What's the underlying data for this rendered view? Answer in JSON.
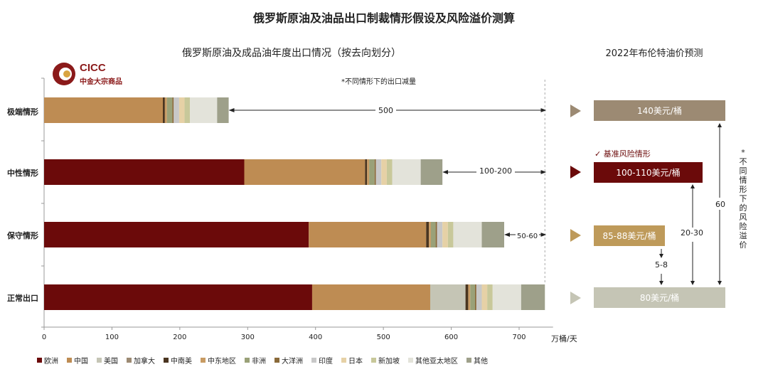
{
  "title": "俄罗斯原油及油品出口制裁情形假设及风险溢价测算",
  "left_title": "俄罗斯原油及成品油年度出口情况（按去向划分）",
  "right_title": "2022年布伦特油价预测",
  "note": "*不同情形下的出口减量",
  "logo": {
    "name": "CICC",
    "sub": "中金大宗商品"
  },
  "x_unit": "万桶/天",
  "scenarios": [
    {
      "label": "极端情形",
      "reduction": "500"
    },
    {
      "label": "中性情形",
      "reduction": "100-200"
    },
    {
      "label": "保守情形",
      "reduction": "50-60"
    },
    {
      "label": "正常出口",
      "reduction": ""
    }
  ],
  "chart_data": {
    "type": "bar",
    "orientation": "horizontal",
    "stacked": true,
    "categories": [
      "极端情形",
      "中性情形",
      "保守情形",
      "正常出口"
    ],
    "xlim": [
      0,
      750
    ],
    "xticks": [
      0,
      100,
      200,
      300,
      400,
      500,
      600,
      700
    ],
    "xlabel": "万桶/天",
    "grid": false,
    "legend_position": "bottom",
    "series": [
      {
        "name": "欧洲",
        "color": "#6b0a0a",
        "values": [
          0,
          295,
          390,
          395
        ]
      },
      {
        "name": "中国",
        "color": "#be8c53",
        "values": [
          175,
          178,
          173,
          174
        ]
      },
      {
        "name": "美国",
        "color": "#c5c5b5",
        "values": [
          0,
          0,
          0,
          52
        ]
      },
      {
        "name": "加拿大",
        "color": "#9c8a73",
        "values": [
          0,
          0,
          0,
          0
        ]
      },
      {
        "name": "中南美",
        "color": "#4a3520",
        "values": [
          3,
          3,
          4,
          4
        ]
      },
      {
        "name": "中东地区",
        "color": "#c89b63",
        "values": [
          3,
          3,
          3,
          3
        ]
      },
      {
        "name": "非洲",
        "color": "#9aa178",
        "values": [
          8,
          8,
          7,
          7
        ]
      },
      {
        "name": "大洋洲",
        "color": "#8a6a3a",
        "values": [
          2,
          2,
          2,
          2
        ]
      },
      {
        "name": "印度",
        "color": "#c8c8c8",
        "values": [
          8,
          8,
          8,
          8
        ]
      },
      {
        "name": "日本",
        "color": "#e6d1a6",
        "values": [
          8,
          8,
          8,
          8
        ]
      },
      {
        "name": "新加坡",
        "color": "#c8c89a",
        "values": [
          8,
          8,
          8,
          8
        ]
      },
      {
        "name": "其他亚太地区",
        "color": "#e3e3da",
        "values": [
          40,
          42,
          42,
          42
        ]
      },
      {
        "name": "其他",
        "color": "#9ea08a",
        "values": [
          17,
          32,
          33,
          35
        ]
      }
    ]
  },
  "predictions": [
    {
      "label": "140美元/桶",
      "value": 140,
      "color": "#9c8a73",
      "arrow_color": "#9c8a73"
    },
    {
      "label": "100-110美元/桶",
      "value": 110,
      "color": "#6b0a0a",
      "arrow_color": "#6b0a0a"
    },
    {
      "label": "85-88美元/桶",
      "value": 88,
      "color": "#be9a5a",
      "arrow_color": "#be9a5a"
    },
    {
      "label": "80美元/桶",
      "value": 80,
      "color": "#c5c5b5",
      "arrow_color": "#c5c5b5"
    }
  ],
  "base_case_label": "✓ 基准风险情形",
  "premiums": {
    "a": "5-8",
    "b": "20-30",
    "c": "60"
  },
  "premium_note": "*不同情形下的风险溢价"
}
